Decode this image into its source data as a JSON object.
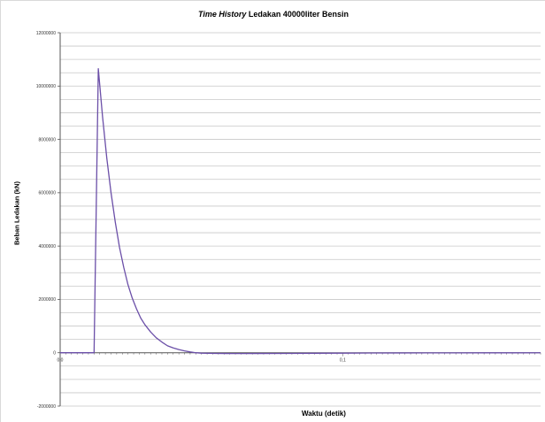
{
  "chart": {
    "title_prefix": "Time History",
    "title_rest": " Ledakan 40000liter Bensin",
    "ylabel": "Beban Ledakan (kN)",
    "xlabel": "Waktu (detik)"
  },
  "colors": {
    "series": "#6b4fa8",
    "axis": "#555555",
    "grid": "#c8c8c8"
  },
  "chart_data": {
    "type": "line",
    "title": "Time History Ledakan 40000liter Bensin",
    "xlabel": "Waktu (detik)",
    "ylabel": "Beban Ledakan (kN)",
    "xlim": [
      0,
      0.17
    ],
    "ylim": [
      -2000000,
      12000000
    ],
    "x_tick_labels": [
      {
        "value": 0.0,
        "label": "0,0"
      },
      {
        "value": 0.1,
        "label": "0,1"
      }
    ],
    "y_tick_labels": [
      {
        "value": -2000000,
        "label": "-2000000"
      },
      {
        "value": 0,
        "label": "0"
      },
      {
        "value": 2000000,
        "label": "2000000"
      },
      {
        "value": 4000000,
        "label": "4000000"
      },
      {
        "value": 6000000,
        "label": "6000000"
      },
      {
        "value": 8000000,
        "label": "8000000"
      },
      {
        "value": 10000000,
        "label": "10000000"
      },
      {
        "value": 12000000,
        "label": "12000000"
      }
    ],
    "grid": true,
    "legend": false,
    "series": [
      {
        "x": [
          0,
          0.012,
          0.0135,
          0.015,
          0.0165,
          0.018,
          0.0195,
          0.021,
          0.0225,
          0.024,
          0.0255,
          0.027,
          0.0285,
          0.03,
          0.032,
          0.034,
          0.036,
          0.038,
          0.04,
          0.042,
          0.044,
          0.046,
          0.048,
          0.05,
          0.055,
          0.06,
          0.065,
          0.07,
          0.08,
          0.09,
          0.1,
          0.11,
          0.12,
          0.13,
          0.14,
          0.15,
          0.16,
          0.17
        ],
        "y": [
          0,
          0,
          10650000,
          8850000,
          7300000,
          6000000,
          4900000,
          3950000,
          3200000,
          2550000,
          2050000,
          1650000,
          1300000,
          1050000,
          780000,
          560000,
          400000,
          260000,
          180000,
          120000,
          70000,
          30000,
          0,
          -15000,
          -25000,
          -30000,
          -30000,
          -28000,
          -25000,
          -20000,
          -15000,
          -10000,
          -8000,
          -6000,
          -5000,
          -4000,
          -3000,
          -2000
        ]
      }
    ]
  }
}
